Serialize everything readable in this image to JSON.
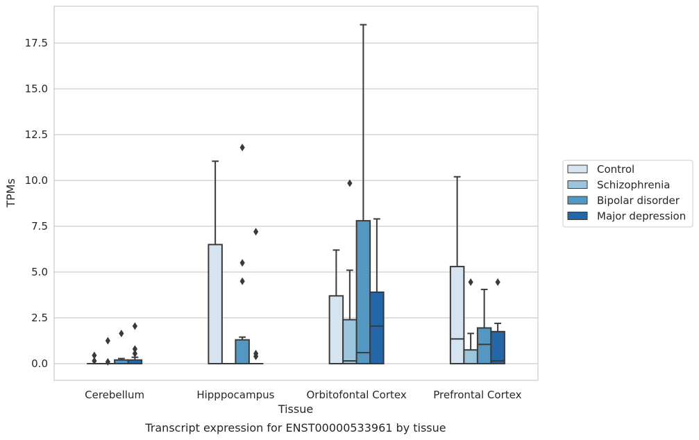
{
  "chart_data": {
    "type": "boxplot",
    "xlabel": "Tissue",
    "ylabel": "TPMs",
    "caption": "Transcript expression for ENST00000533961 by tissue",
    "ylim": [
      -0.9,
      19.4
    ],
    "yticks": [
      0.0,
      2.5,
      5.0,
      7.5,
      10.0,
      12.5,
      15.0,
      17.5
    ],
    "ytick_labels": [
      "0.0",
      "2.5",
      "5.0",
      "7.5",
      "10.0",
      "12.5",
      "15.0",
      "17.5"
    ],
    "grid": "horizontal",
    "legend_position": "right",
    "categories": [
      "Cerebellum",
      "Hipppocampus",
      "Orbitofontal Cortex",
      "Prefrontal Cortex"
    ],
    "series": [
      {
        "name": "Control",
        "color": "#d6e3f0",
        "boxes": [
          {
            "q1": 0,
            "median": 0,
            "q3": 0,
            "whislo": 0,
            "whishi": 0,
            "fliers": [
              0.15,
              0.45
            ]
          },
          {
            "q1": 0,
            "median": 0,
            "q3": 6.5,
            "whislo": 0,
            "whishi": 11.05,
            "fliers": []
          },
          {
            "q1": 0,
            "median": 0,
            "q3": 3.7,
            "whislo": 0,
            "whishi": 6.2,
            "fliers": []
          },
          {
            "q1": 0,
            "median": 1.35,
            "q3": 5.3,
            "whislo": 0,
            "whishi": 10.2,
            "fliers": []
          }
        ]
      },
      {
        "name": "Schizophrenia",
        "color": "#9ac5dc",
        "boxes": [
          {
            "q1": 0,
            "median": 0,
            "q3": 0,
            "whislo": 0,
            "whishi": 0,
            "fliers": [
              0.1,
              1.25
            ]
          },
          {
            "q1": 0,
            "median": 0,
            "q3": 0,
            "whislo": 0,
            "whishi": 0,
            "fliers": []
          },
          {
            "q1": 0,
            "median": 0.15,
            "q3": 2.4,
            "whislo": 0,
            "whishi": 5.1,
            "fliers": [
              9.85
            ]
          },
          {
            "q1": 0,
            "median": 0,
            "q3": 0.75,
            "whislo": 0,
            "whishi": 1.65,
            "fliers": [
              4.45
            ]
          }
        ]
      },
      {
        "name": "Bipolar disorder",
        "color": "#5398c3",
        "boxes": [
          {
            "q1": 0,
            "median": 0,
            "q3": 0.2,
            "whislo": 0,
            "whishi": 0.28,
            "fliers": [
              1.65
            ]
          },
          {
            "q1": 0,
            "median": 0,
            "q3": 1.3,
            "whislo": 0,
            "whishi": 1.45,
            "fliers": [
              4.5,
              5.5,
              11.8
            ]
          },
          {
            "q1": 0,
            "median": 0.6,
            "q3": 7.8,
            "whislo": 0,
            "whishi": 18.5,
            "fliers": []
          },
          {
            "q1": 0,
            "median": 1.05,
            "q3": 1.95,
            "whislo": 0,
            "whishi": 4.05,
            "fliers": []
          }
        ]
      },
      {
        "name": "Major depression",
        "color": "#2367a9",
        "boxes": [
          {
            "q1": 0,
            "median": 0,
            "q3": 0.2,
            "whislo": 0,
            "whishi": 0.35,
            "fliers": [
              0.55,
              0.8,
              2.05
            ]
          },
          {
            "q1": 0,
            "median": 0,
            "q3": 0,
            "whislo": 0,
            "whishi": 0,
            "fliers": [
              0.4,
              0.55,
              7.2
            ]
          },
          {
            "q1": 0,
            "median": 2.05,
            "q3": 3.9,
            "whislo": 0,
            "whishi": 7.9,
            "fliers": []
          },
          {
            "q1": 0,
            "median": 0.15,
            "q3": 1.75,
            "whislo": 0,
            "whishi": 2.2,
            "fliers": [
              4.45
            ]
          }
        ]
      }
    ]
  }
}
